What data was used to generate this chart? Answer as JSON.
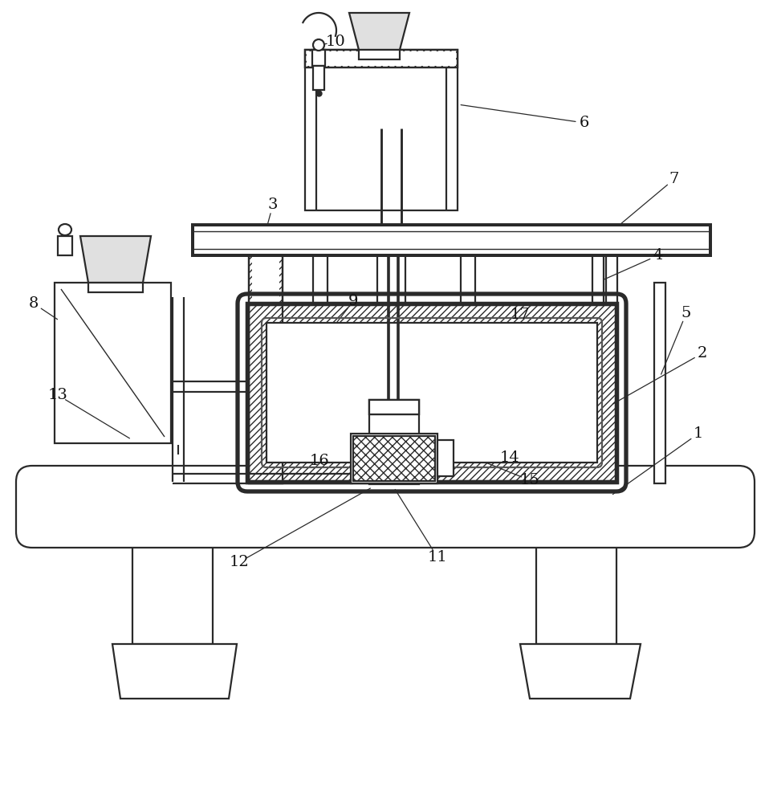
{
  "bg": "#ffffff",
  "lc": "#2a2a2a",
  "figsize": [
    9.63,
    10.0
  ],
  "dpi": 100,
  "lw": 1.6,
  "lw_thick": 2.8
}
